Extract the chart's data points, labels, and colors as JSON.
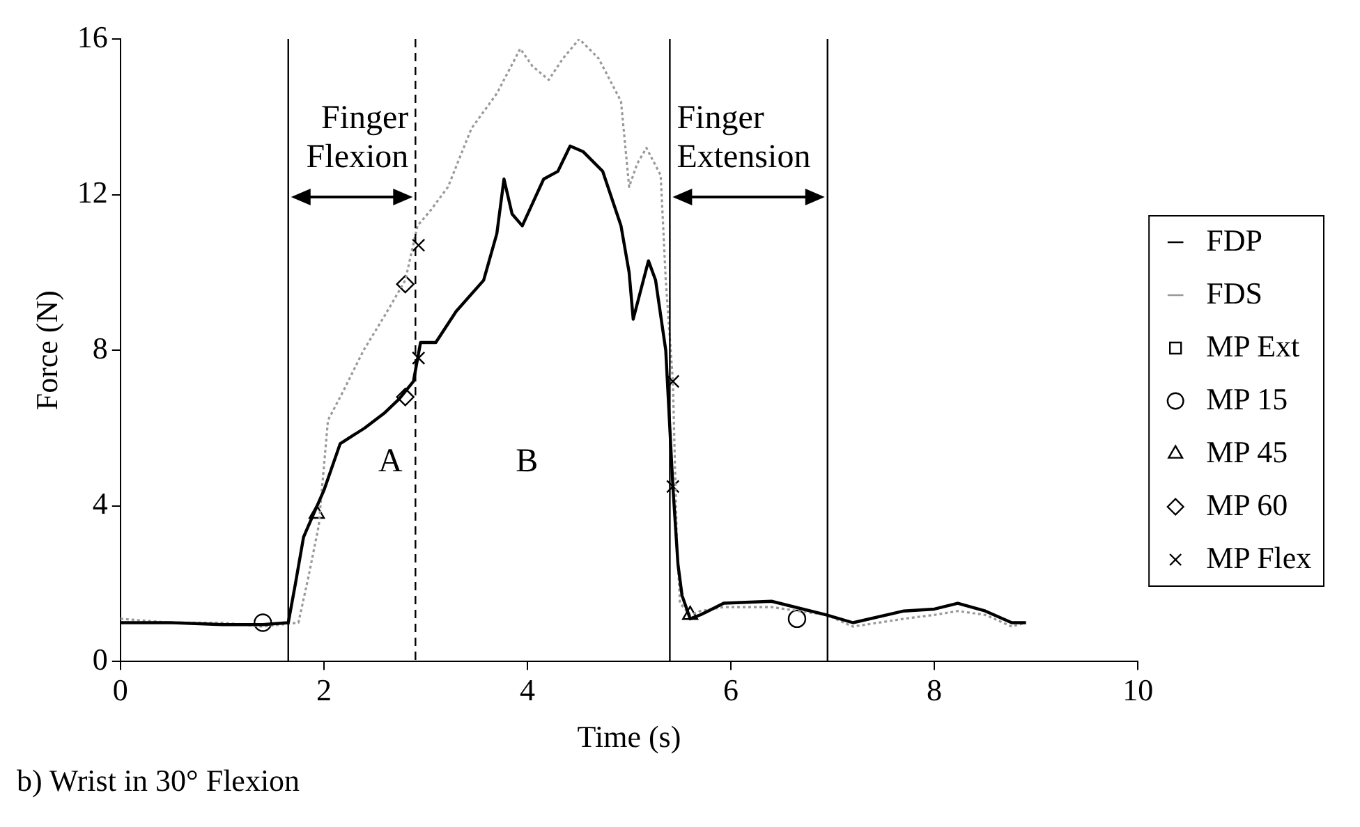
{
  "chart_data": {
    "type": "line",
    "xlabel": "Time (s)",
    "ylabel": "Force (N)",
    "xlim": [
      0,
      10
    ],
    "xticks": [
      0,
      2,
      4,
      6,
      8,
      10
    ],
    "ylim": [
      0,
      16
    ],
    "yticks": [
      0,
      4,
      8,
      12,
      16
    ],
    "grid": false,
    "legend": "right",
    "series": [
      {
        "name": "FDP",
        "color": "#000000",
        "line_style": "solid",
        "marker": "none",
        "x": [
          0,
          0.5,
          1.0,
          1.4,
          1.65,
          1.72,
          1.8,
          1.9,
          2.0,
          2.16,
          2.4,
          2.6,
          2.74,
          2.88,
          2.95,
          3.1,
          3.3,
          3.57,
          3.7,
          3.77,
          3.85,
          3.95,
          4.16,
          4.3,
          4.42,
          4.55,
          4.74,
          4.92,
          5.0,
          5.04,
          5.12,
          5.19,
          5.26,
          5.36,
          5.43,
          5.48,
          5.52,
          5.6,
          5.7,
          5.93,
          6.4,
          6.94,
          7.2,
          7.7,
          8.0,
          8.23,
          8.5,
          8.76,
          8.9
        ],
        "values": [
          1.0,
          1.0,
          0.95,
          0.95,
          1.0,
          2.0,
          3.2,
          3.8,
          4.4,
          5.6,
          6.0,
          6.4,
          6.75,
          7.2,
          8.2,
          8.2,
          9.0,
          9.8,
          11.0,
          12.4,
          11.5,
          11.2,
          12.4,
          12.6,
          13.25,
          13.1,
          12.6,
          11.2,
          10.0,
          8.8,
          9.6,
          10.3,
          9.8,
          8.0,
          4.5,
          2.5,
          1.7,
          1.1,
          1.2,
          1.5,
          1.55,
          1.2,
          1.0,
          1.3,
          1.35,
          1.5,
          1.3,
          1.0,
          1.0
        ]
      },
      {
        "name": "FDS",
        "color": "#999999",
        "line_style": "dotted",
        "marker": "none",
        "x": [
          0,
          0.5,
          1.0,
          1.4,
          1.75,
          1.85,
          1.95,
          2.04,
          2.2,
          2.39,
          2.6,
          2.8,
          2.92,
          3.05,
          3.22,
          3.45,
          3.7,
          3.93,
          4.05,
          4.21,
          4.35,
          4.51,
          4.7,
          4.92,
          5.0,
          5.08,
          5.17,
          5.31,
          5.36,
          5.43,
          5.47,
          5.5,
          5.6,
          5.7,
          5.93,
          6.4,
          6.94,
          7.2,
          7.7,
          8.0,
          8.23,
          8.5,
          8.76,
          8.9
        ],
        "values": [
          1.1,
          1.0,
          1.0,
          0.9,
          1.0,
          2.2,
          3.5,
          6.2,
          7.0,
          8.0,
          8.9,
          9.8,
          11.2,
          11.6,
          12.2,
          13.7,
          14.6,
          15.75,
          15.3,
          14.95,
          15.5,
          16.0,
          15.5,
          14.4,
          12.2,
          12.8,
          13.2,
          12.5,
          9.8,
          7.2,
          3.0,
          1.5,
          1.2,
          1.3,
          1.4,
          1.4,
          1.2,
          0.9,
          1.1,
          1.2,
          1.3,
          1.2,
          0.9,
          1.0
        ]
      },
      {
        "name": "MP Ext",
        "type": "scatter",
        "color": "#000000",
        "marker": "square"
      },
      {
        "name": "MP 15",
        "type": "scatter",
        "color": "#000000",
        "marker": "circle",
        "x": [
          1.4,
          6.65
        ],
        "values": [
          1.0,
          1.1
        ]
      },
      {
        "name": "MP 45",
        "type": "scatter",
        "color": "#000000",
        "marker": "triangle",
        "x": [
          1.93,
          5.6
        ],
        "values": [
          3.8,
          1.2
        ]
      },
      {
        "name": "MP 60",
        "type": "scatter",
        "color": "#000000",
        "marker": "diamond",
        "x": [
          2.8,
          2.8
        ],
        "values": [
          9.7,
          6.8
        ]
      },
      {
        "name": "MP Flex",
        "type": "scatter",
        "color": "#000000",
        "marker": "cross",
        "x": [
          2.93,
          2.93,
          5.43,
          5.43
        ],
        "values": [
          10.7,
          7.8,
          7.2,
          4.5
        ]
      }
    ],
    "ref_lines": [
      {
        "axis": "x",
        "value": 1.65,
        "line_style": "solid",
        "color": "#000000"
      },
      {
        "axis": "x",
        "value": 2.9,
        "line_style": "dashed",
        "color": "#000000"
      },
      {
        "axis": "x",
        "value": 5.4,
        "line_style": "solid",
        "color": "#000000"
      },
      {
        "axis": "x",
        "value": 6.95,
        "line_style": "solid",
        "color": "#000000"
      }
    ],
    "annotations": [
      "Finger\nFlexion",
      "Finger\nExtension",
      "A",
      "B",
      "b) Wrist in 30° Flexion"
    ]
  }
}
